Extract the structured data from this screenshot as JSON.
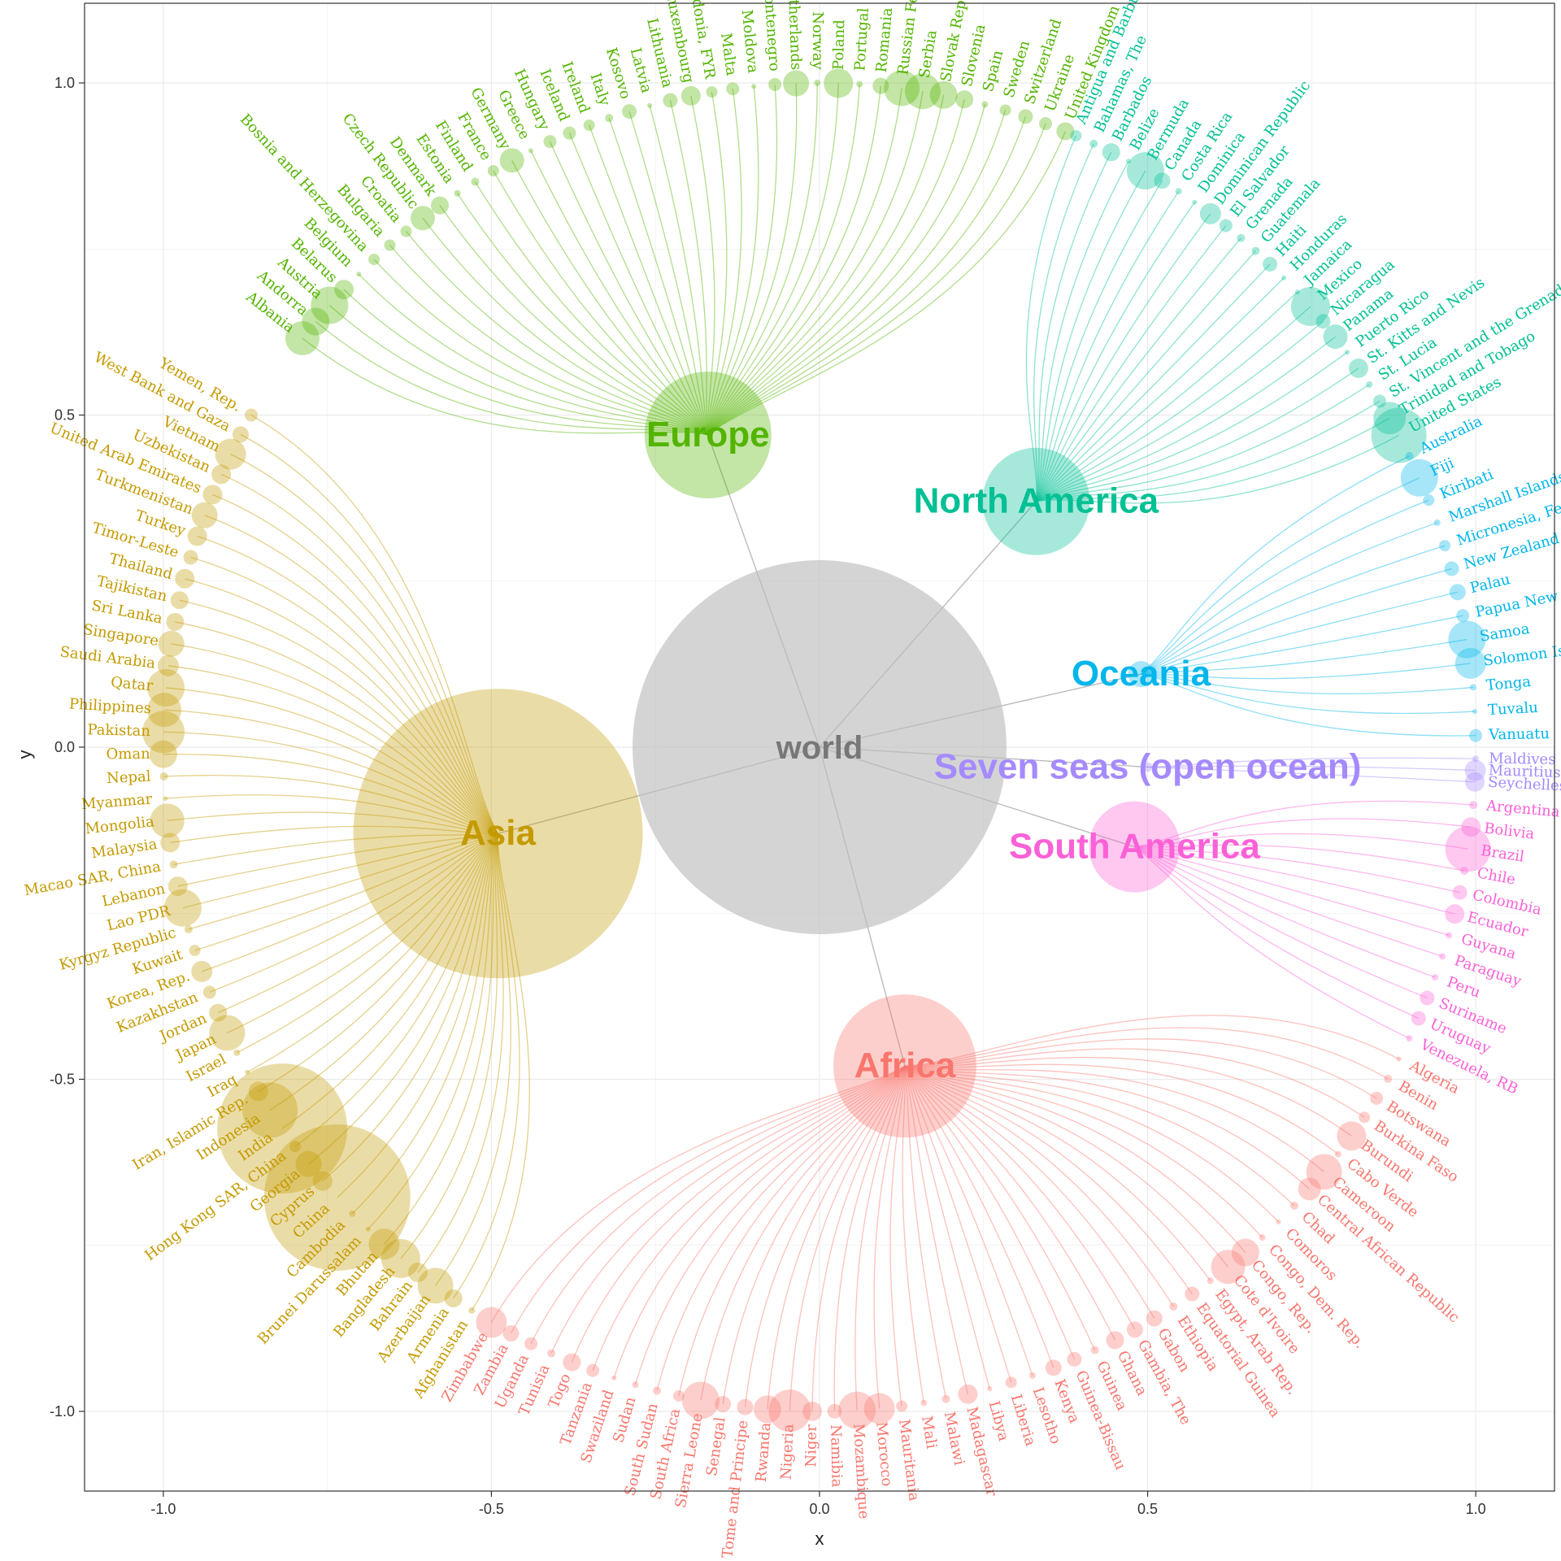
{
  "chart_data": {
    "type": "scatter",
    "title": "",
    "xlabel": "x",
    "ylabel": "y",
    "xlim": [
      -1.12,
      1.12
    ],
    "ylim": [
      -1.12,
      1.12
    ],
    "xticks": [
      -1.0,
      -0.5,
      0.0,
      0.5,
      1.0
    ],
    "yticks": [
      -1.0,
      -0.5,
      0.0,
      0.5,
      1.0
    ],
    "xtick_labels": [
      "-1.0",
      "-0.5",
      "0.0",
      "0.5",
      "1.0"
    ],
    "ytick_labels": [
      "-1.0",
      "-0.5",
      "0.0",
      "0.5",
      "1.0"
    ],
    "grid": true,
    "root": {
      "name": "world",
      "x": 0.0,
      "y": 0.0,
      "color": "#bdbdbd"
    },
    "groups": [
      {
        "name": "Europe",
        "x": -0.17,
        "y": 0.47,
        "color": "#53B400",
        "leaf_angle_range": [
          142,
          68
        ],
        "leaves": [
          "Albania",
          "Andorra",
          "Austria",
          "Belarus",
          "Belgium",
          "Bosnia and Herzegovina",
          "Bulgaria",
          "Croatia",
          "Czech Republic",
          "Denmark",
          "Estonia",
          "Finland",
          "France",
          "Germany",
          "Greece",
          "Hungary",
          "Iceland",
          "Ireland",
          "Italy",
          "Kosovo",
          "Latvia",
          "Lithuania",
          "Luxembourg",
          "Macedonia, FYR",
          "Malta",
          "Moldova",
          "Montenegro",
          "Netherlands",
          "Norway",
          "Poland",
          "Portugal",
          "Romania",
          "Russian Federation",
          "Serbia",
          "Slovak Republic",
          "Slovenia",
          "Spain",
          "Sweden",
          "Switzerland",
          "Ukraine",
          "United Kingdom"
        ]
      },
      {
        "name": "North America",
        "x": 0.33,
        "y": 0.37,
        "color": "#00C094",
        "leaf_angle_range": [
          67,
          28
        ],
        "leaves": [
          "Antigua and Barbuda",
          "Bahamas, The",
          "Barbados",
          "Belize",
          "Bermuda",
          "Canada",
          "Costa Rica",
          "Dominica",
          "Dominican Republic",
          "El Salvador",
          "Grenada",
          "Guatemala",
          "Haiti",
          "Honduras",
          "Jamaica",
          "Mexico",
          "Nicaragua",
          "Panama",
          "Puerto Rico",
          "St. Kitts and Nevis",
          "St. Lucia",
          "St. Vincent and the Grenadines",
          "Trinidad and Tobago",
          "United States"
        ]
      },
      {
        "name": "Oceania",
        "x": 0.49,
        "y": 0.11,
        "color": "#00B6EB",
        "leaf_angle_range": [
          26,
          1
        ],
        "leaves": [
          "Australia",
          "Fiji",
          "Kiribati",
          "Marshall Islands",
          "Micronesia, Fed. Sts.",
          "New Zealand",
          "Palau",
          "Papua New Guinea",
          "Samoa",
          "Solomon Islands",
          "Tonga",
          "Tuvalu",
          "Vanuatu"
        ]
      },
      {
        "name": "Seven seas (open ocean)",
        "x": 0.5,
        "y": -0.03,
        "color": "#A58AFF",
        "leaf_angle_range": [
          -1,
          -3
        ],
        "leaves": [
          "Maldives",
          "Mauritius",
          "Seychelles"
        ]
      },
      {
        "name": "South America",
        "x": 0.48,
        "y": -0.15,
        "color": "#FB61D7",
        "leaf_angle_range": [
          -5,
          -26
        ],
        "leaves": [
          "Argentina",
          "Bolivia",
          "Brazil",
          "Chile",
          "Colombia",
          "Ecuador",
          "Guyana",
          "Paraguay",
          "Peru",
          "Suriname",
          "Uruguay",
          "Venezuela, RB"
        ]
      },
      {
        "name": "Africa",
        "x": 0.13,
        "y": -0.48,
        "color": "#F8766D",
        "leaf_angle_range": [
          -28,
          -120
        ],
        "leaves": [
          "Algeria",
          "Benin",
          "Botswana",
          "Burkina Faso",
          "Burundi",
          "Cabo Verde",
          "Cameroon",
          "Central African Republic",
          "Chad",
          "Comoros",
          "Congo, Dem. Rep.",
          "Congo, Rep.",
          "Cote d'Ivoire",
          "Egypt, Arab Rep.",
          "Equatorial Guinea",
          "Ethiopia",
          "Gabon",
          "Gambia, The",
          "Ghana",
          "Guinea",
          "Guinea-Bissau",
          "Kenya",
          "Lesotho",
          "Liberia",
          "Libya",
          "Madagascar",
          "Malawi",
          "Mali",
          "Mauritania",
          "Morocco",
          "Mozambique",
          "Namibia",
          "Niger",
          "Nigeria",
          "Rwanda",
          "Sao Tome and Principe",
          "Senegal",
          "Sierra Leone",
          "South Africa",
          "South Sudan",
          "Sudan",
          "Swaziland",
          "Tanzania",
          "Togo",
          "Tunisia",
          "Uganda",
          "Zambia",
          "Zimbabwe"
        ]
      },
      {
        "name": "Asia",
        "x": -0.49,
        "y": -0.13,
        "color": "#C49A00",
        "leaf_angle_range": [
          150,
          238
        ],
        "leaves": [
          "Yemen, Rep.",
          "West Bank and Gaza",
          "Vietnam",
          "Uzbekistan",
          "United Arab Emirates",
          "Turkmenistan",
          "Turkey",
          "Timor-Leste",
          "Thailand",
          "Tajikistan",
          "Sri Lanka",
          "Singapore",
          "Saudi Arabia",
          "Qatar",
          "Philippines",
          "Pakistan",
          "Oman",
          "Nepal",
          "Myanmar",
          "Mongolia",
          "Malaysia",
          "Macao SAR, China",
          "Lebanon",
          "Lao PDR",
          "Kyrgyz Republic",
          "Kuwait",
          "Korea, Rep.",
          "Kazakhstan",
          "Jordan",
          "Japan",
          "Israel",
          "Iraq",
          "Iran, Islamic Rep.",
          "Indonesia",
          "India",
          "Hong Kong SAR, China",
          "Georgia",
          "Cyprus",
          "China",
          "Cambodia",
          "Brunei Darussalam",
          "Bhutan",
          "Bangladesh",
          "Bahrain",
          "Azerbaijan",
          "Armenia",
          "Afghanistan"
        ]
      }
    ]
  }
}
